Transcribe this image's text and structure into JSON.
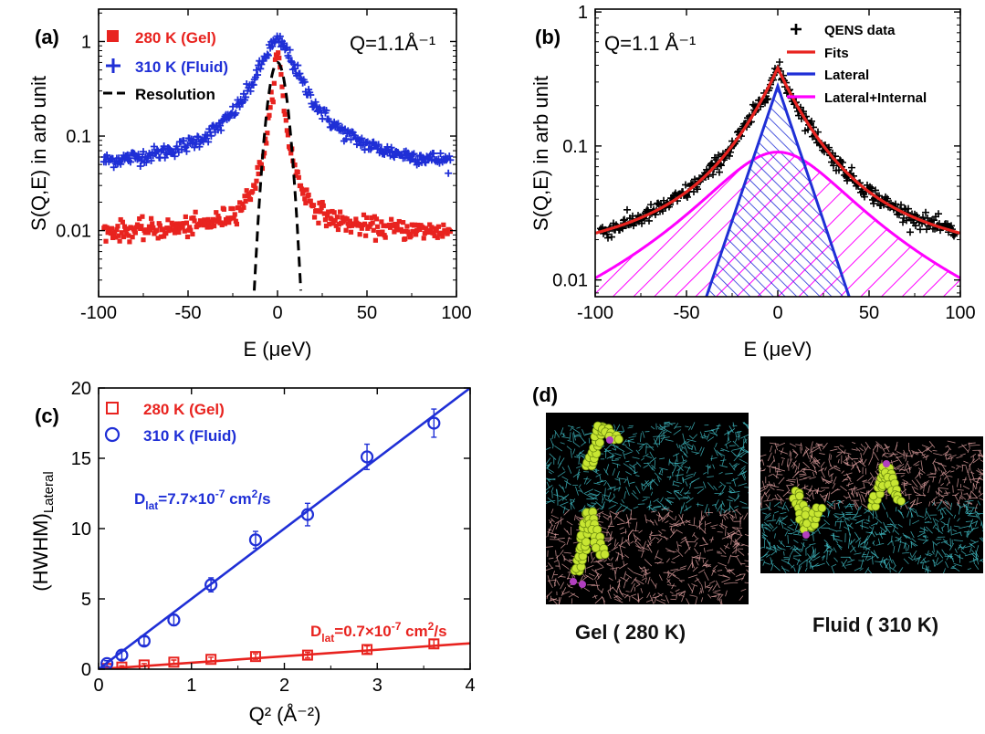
{
  "chart_data": [
    {
      "panel": "(a)",
      "type": "scatter",
      "annotation": "Q=1.1Å⁻¹",
      "xlabel": "E (μeV)",
      "ylabel": "S(Q,E) in arb unit",
      "xlim": [
        -100,
        100
      ],
      "ylim": [
        0.002,
        2.2
      ],
      "yscale": "log",
      "xticks": [
        -100,
        -50,
        0,
        50,
        100
      ],
      "yticks": [
        0.01,
        0.1,
        1
      ],
      "ytick_labels": [
        "0.01",
        "0.1",
        "1"
      ],
      "legend_position": "top-left",
      "series": [
        {
          "name": "280 K (Gel)",
          "color": "#e8231f",
          "marker": "square",
          "style": "lorentzian",
          "peak": 0.7,
          "hwhm": 2.3,
          "background": 0.0095
        },
        {
          "name": "310 K (Fluid)",
          "color": "#1f2fd6",
          "marker": "plus",
          "style": "lorentzian",
          "peak": 0.95,
          "hwhm": 10,
          "background": 0.045
        },
        {
          "name": "Resolution",
          "color": "#000000",
          "marker": "dashed-line",
          "style": "gaussian",
          "peak": 0.6,
          "sigma": 3.9
        }
      ]
    },
    {
      "panel": "(b)",
      "type": "scatter",
      "annotation": "Q=1.1 Å⁻¹",
      "xlabel": "E (μeV)",
      "ylabel": "S(Q,E) in arb unit",
      "xlim": [
        -100,
        100
      ],
      "ylim": [
        0.0075,
        1.05
      ],
      "yscale": "log",
      "xticks": [
        -100,
        -50,
        0,
        50,
        100
      ],
      "yticks": [
        0.01,
        0.1,
        1
      ],
      "ytick_labels": [
        "0.01",
        "0.1",
        "1"
      ],
      "legend_position": "top-right",
      "series": [
        {
          "name": "QENS data",
          "color": "#000000",
          "marker": "plus"
        },
        {
          "name": "Fits",
          "color": "#e8231f",
          "marker": "line"
        },
        {
          "name": "Lateral",
          "color": "#1f2fd6",
          "marker": "line",
          "peak": 0.28,
          "hwhm": 9
        },
        {
          "name": "Lateral+Internal",
          "color": "#ff00ff",
          "marker": "line",
          "peak": 0.09,
          "hwhm": 36
        }
      ]
    },
    {
      "panel": "(c)",
      "type": "scatter",
      "xlabel": "Q² (Å⁻²)",
      "ylabel": "(HWHM)Lateral",
      "xlim": [
        0,
        4
      ],
      "ylim": [
        0,
        20
      ],
      "xticks": [
        0,
        1,
        2,
        3,
        4
      ],
      "yticks": [
        0,
        5,
        10,
        15,
        20
      ],
      "legend_position": "top-left",
      "series": [
        {
          "name": "280 K (Gel)",
          "color": "#e8231f",
          "marker": "open-square",
          "x": [
            0.09,
            0.25,
            0.49,
            0.81,
            1.21,
            1.69,
            2.25,
            2.89,
            3.61
          ],
          "y": [
            0.05,
            0.15,
            0.3,
            0.5,
            0.7,
            0.9,
            1.0,
            1.4,
            1.8
          ],
          "err": [
            0.1,
            0.1,
            0.1,
            0.15,
            0.15,
            0.2,
            0.2,
            0.25,
            0.3
          ],
          "fit_slope": 0.46,
          "annotation": {
            "D": "D",
            "sub": "lat",
            "value": "=0.7×10",
            "exp": "-7",
            "unit": " cm",
            "unit_exp": "2",
            "tail": "/s"
          }
        },
        {
          "name": "310 K (Fluid)",
          "color": "#1f2fd6",
          "marker": "open-circle",
          "x": [
            0.09,
            0.25,
            0.49,
            0.81,
            1.21,
            1.69,
            2.25,
            2.89,
            3.61
          ],
          "y": [
            0.4,
            1.0,
            2.0,
            3.5,
            6.0,
            9.2,
            11.0,
            15.1,
            17.5
          ],
          "err": [
            0.2,
            0.3,
            0.3,
            0.4,
            0.5,
            0.6,
            0.8,
            0.9,
            1.0
          ],
          "fit_slope": 5.0,
          "annotation": {
            "D": "D",
            "sub": "lat",
            "value": "=7.7×10",
            "exp": "-7",
            "unit": " cm",
            "unit_exp": "2",
            "tail": "/s"
          }
        }
      ]
    }
  ],
  "panel_d": {
    "label": "(d)",
    "captions": [
      "Gel ( 280 K)",
      "Fluid ( 310 K)"
    ],
    "colors": {
      "background": "#000000",
      "lipid_upper": "#3fb8c0",
      "lipid_lower": "#d89a9a",
      "molecule": "#c8e632",
      "molecule_accent": "#b23fc0"
    }
  }
}
